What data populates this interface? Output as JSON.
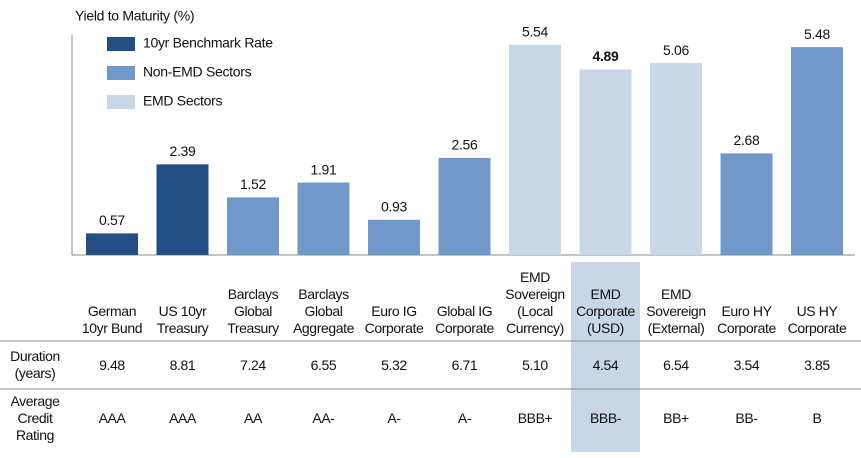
{
  "chart_data": {
    "type": "bar",
    "y_label": "Yield to Maturity (%)",
    "categories": [
      "German\n10yr Bund",
      "US 10yr\nTreasury",
      "Barclays\nGlobal\nTreasury",
      "Barclays\nGlobal\nAggregate",
      "Euro IG\nCorporate",
      "Global IG\nCorporate",
      "EMD\nSovereign\n(Local\nCurrency)",
      "EMD\nCorporate\n(USD)",
      "EMD\nSovereign\n(External)",
      "Euro HY\nCorporate",
      "US HY\nCorporate"
    ],
    "series": [
      {
        "name": "10yr Benchmark Rate",
        "color": "#234e83",
        "values": [
          0.57,
          2.39,
          null,
          null,
          null,
          null,
          null,
          null,
          null,
          null,
          null
        ]
      },
      {
        "name": "Non-EMD Sectors",
        "color": "#7098c8",
        "values": [
          null,
          null,
          1.52,
          1.91,
          0.93,
          2.56,
          null,
          null,
          null,
          2.68,
          5.48
        ]
      },
      {
        "name": "EMD Sectors",
        "color": "#c9d6e5",
        "values": [
          null,
          null,
          null,
          null,
          null,
          null,
          5.54,
          4.89,
          5.06,
          null,
          null
        ]
      }
    ],
    "ylim": [
      0,
      5.8
    ]
  },
  "table": {
    "rows": [
      {
        "label": "Duration\n(years)",
        "values": [
          "9.48",
          "8.81",
          "7.24",
          "6.55",
          "5.32",
          "6.71",
          "5.10",
          "4.54",
          "6.54",
          "3.54",
          "3.85"
        ]
      },
      {
        "label": "Average\nCredit\nRating",
        "values": [
          "AAA",
          "AAA",
          "AA",
          "AA-",
          "A-",
          "A-",
          "BBB+",
          "BBB-",
          "BB+",
          "BB-",
          "B"
        ]
      }
    ]
  }
}
